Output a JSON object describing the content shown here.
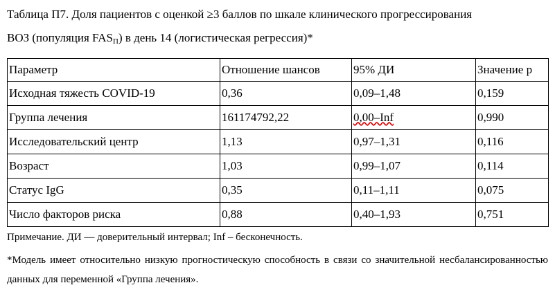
{
  "title": {
    "before": "Таблица П7. Доля пациентов с оценкой ≥3 баллов по шкале клинического прогрессирования ВОЗ (популяция FAS",
    "subscript": "П",
    "after": ") в день 14  (логистическая регрессия)*"
  },
  "table": {
    "header": [
      "Параметр",
      "Отношение шансов",
      "95% ДИ",
      "Значение p"
    ],
    "rows": [
      [
        "Исходная тяжесть COVID-19",
        "0,36",
        "0,09–1,48",
        "0,159"
      ],
      [
        "Группа лечения",
        "161174792,22",
        "0,00–Inf",
        "0,990"
      ],
      [
        "Исследовательский центр",
        "1,13",
        "0,97–1,31",
        "0,116"
      ],
      [
        "Возраст",
        "1,03",
        "0,99–1,07",
        "0,114"
      ],
      [
        "Статус IgG",
        "0,35",
        "0,11–1,11",
        "0,075"
      ],
      [
        "Число факторов риска",
        "0,88",
        "0,40–1,93",
        "0,751"
      ]
    ]
  },
  "notes": [
    "Примечание. ДИ — доверительный интервал; Inf – бесконечность.",
    "*Модель имеет относительно низкую прогностическую способность в связи со значительной несбалансированностью данных для переменной «Группа лечения»."
  ]
}
